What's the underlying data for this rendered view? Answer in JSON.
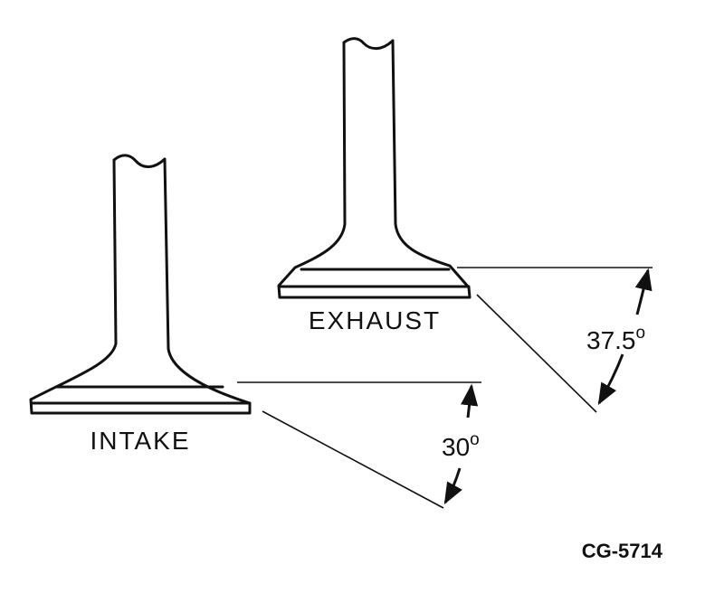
{
  "valves": {
    "exhaust": {
      "label": "EXHAUST",
      "angle_value": "37.5",
      "angle_unit": "o"
    },
    "intake": {
      "label": "INTAKE",
      "angle_value": "30",
      "angle_unit": "o"
    }
  },
  "figure_id": "CG-5714",
  "line_color": "#111111",
  "background_color": "#ffffff"
}
